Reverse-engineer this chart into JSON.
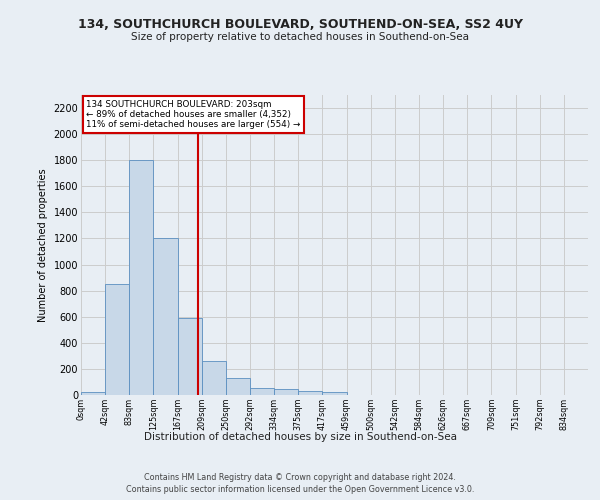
{
  "title1": "134, SOUTHCHURCH BOULEVARD, SOUTHEND-ON-SEA, SS2 4UY",
  "title2": "Size of property relative to detached houses in Southend-on-Sea",
  "xlabel": "Distribution of detached houses by size in Southend-on-Sea",
  "ylabel": "Number of detached properties",
  "footer1": "Contains HM Land Registry data © Crown copyright and database right 2024.",
  "footer2": "Contains public sector information licensed under the Open Government Licence v3.0.",
  "bin_labels": [
    "0sqm",
    "42sqm",
    "83sqm",
    "125sqm",
    "167sqm",
    "209sqm",
    "250sqm",
    "292sqm",
    "334sqm",
    "375sqm",
    "417sqm",
    "459sqm",
    "500sqm",
    "542sqm",
    "584sqm",
    "626sqm",
    "667sqm",
    "709sqm",
    "751sqm",
    "792sqm",
    "834sqm"
  ],
  "bar_values": [
    25,
    848,
    1800,
    1200,
    590,
    260,
    128,
    50,
    46,
    32,
    20,
    0,
    0,
    0,
    0,
    0,
    0,
    0,
    0,
    0,
    0
  ],
  "bar_color": "#c8d8e8",
  "bar_edgecolor": "#5a8fc0",
  "vline_x": 4.857,
  "vline_color": "#cc0000",
  "annotation_text": "134 SOUTHCHURCH BOULEVARD: 203sqm\n← 89% of detached houses are smaller (4,352)\n11% of semi-detached houses are larger (554) →",
  "annotation_box_edgecolor": "#cc0000",
  "ylim": [
    0,
    2300
  ],
  "yticks": [
    0,
    200,
    400,
    600,
    800,
    1000,
    1200,
    1400,
    1600,
    1800,
    2000,
    2200
  ],
  "grid_color": "#cccccc",
  "background_color": "#e8eef4",
  "axes_background": "#e8eef4"
}
